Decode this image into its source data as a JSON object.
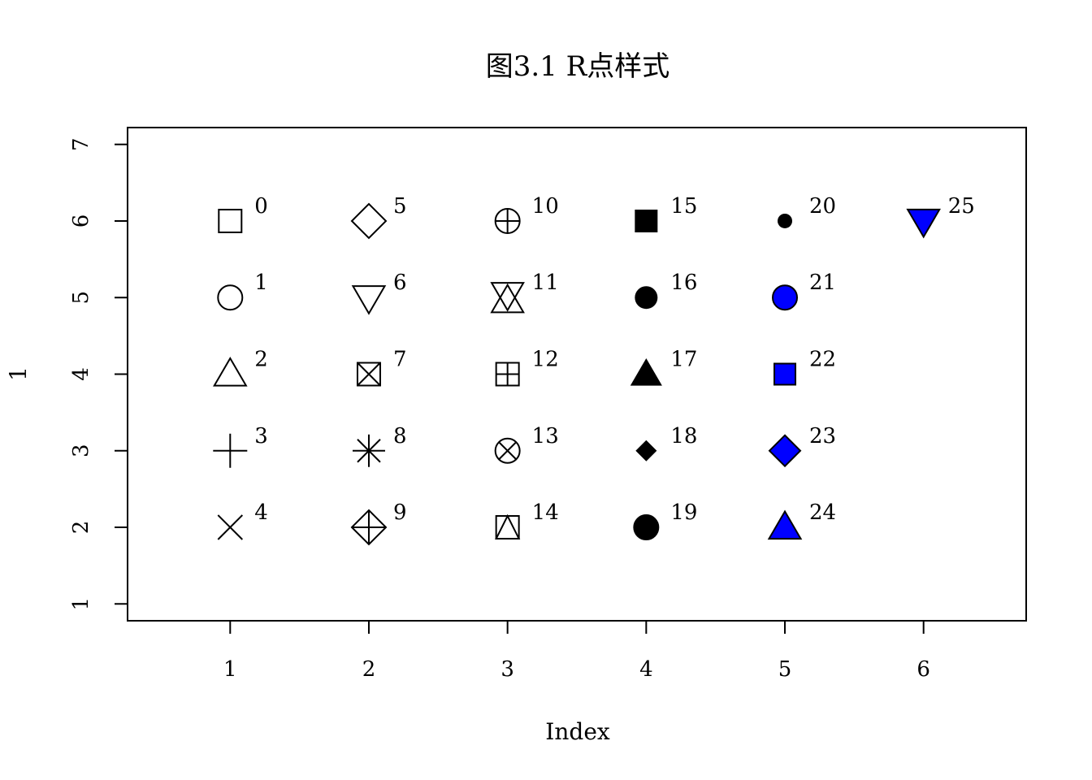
{
  "chart_data": {
    "type": "scatter",
    "title": "图3.1 R点样式",
    "xlabel": "Index",
    "ylabel": "1",
    "xlim": [
      0.26,
      6.74
    ],
    "ylim": [
      0.78,
      7.22
    ],
    "x_ticks": [
      "1",
      "2",
      "3",
      "4",
      "5",
      "6"
    ],
    "y_ticks": [
      "1",
      "2",
      "3",
      "4",
      "5",
      "6",
      "7"
    ],
    "grid": false,
    "fill_color": "#0000ff",
    "points": [
      {
        "x": 1,
        "y": 6,
        "pch": 0,
        "label": "0"
      },
      {
        "x": 1,
        "y": 5,
        "pch": 1,
        "label": "1"
      },
      {
        "x": 1,
        "y": 4,
        "pch": 2,
        "label": "2"
      },
      {
        "x": 1,
        "y": 3,
        "pch": 3,
        "label": "3"
      },
      {
        "x": 1,
        "y": 2,
        "pch": 4,
        "label": "4"
      },
      {
        "x": 2,
        "y": 6,
        "pch": 5,
        "label": "5"
      },
      {
        "x": 2,
        "y": 5,
        "pch": 6,
        "label": "6"
      },
      {
        "x": 2,
        "y": 4,
        "pch": 7,
        "label": "7"
      },
      {
        "x": 2,
        "y": 3,
        "pch": 8,
        "label": "8"
      },
      {
        "x": 2,
        "y": 2,
        "pch": 9,
        "label": "9"
      },
      {
        "x": 3,
        "y": 6,
        "pch": 10,
        "label": "10"
      },
      {
        "x": 3,
        "y": 5,
        "pch": 11,
        "label": "11"
      },
      {
        "x": 3,
        "y": 4,
        "pch": 12,
        "label": "12"
      },
      {
        "x": 3,
        "y": 3,
        "pch": 13,
        "label": "13"
      },
      {
        "x": 3,
        "y": 2,
        "pch": 14,
        "label": "14"
      },
      {
        "x": 4,
        "y": 6,
        "pch": 15,
        "label": "15"
      },
      {
        "x": 4,
        "y": 5,
        "pch": 16,
        "label": "16"
      },
      {
        "x": 4,
        "y": 4,
        "pch": 17,
        "label": "17"
      },
      {
        "x": 4,
        "y": 3,
        "pch": 18,
        "label": "18"
      },
      {
        "x": 4,
        "y": 2,
        "pch": 19,
        "label": "19"
      },
      {
        "x": 5,
        "y": 6,
        "pch": 20,
        "label": "20"
      },
      {
        "x": 5,
        "y": 5,
        "pch": 21,
        "label": "21"
      },
      {
        "x": 5,
        "y": 4,
        "pch": 22,
        "label": "22"
      },
      {
        "x": 5,
        "y": 3,
        "pch": 23,
        "label": "23"
      },
      {
        "x": 5,
        "y": 2,
        "pch": 24,
        "label": "24"
      },
      {
        "x": 6,
        "y": 6,
        "pch": 25,
        "label": "25"
      }
    ]
  }
}
